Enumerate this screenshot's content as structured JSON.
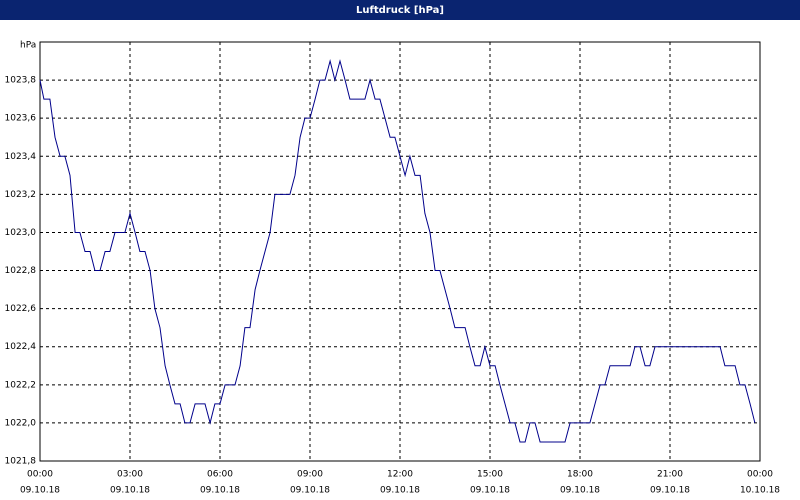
{
  "chart_data": {
    "type": "line",
    "title": "Luftdruck [hPa]",
    "y_unit": "hPa",
    "x": [
      0,
      0.13,
      0.33,
      0.5,
      0.67,
      0.83,
      1,
      1.17,
      1.33,
      1.5,
      1.67,
      1.83,
      2,
      2.17,
      2.33,
      2.5,
      2.83,
      3,
      3.17,
      3.33,
      3.5,
      3.67,
      3.83,
      4,
      4.17,
      4.33,
      4.5,
      4.67,
      4.83,
      5,
      5.17,
      5.5,
      5.67,
      5.83,
      6,
      6.17,
      6.5,
      6.67,
      6.83,
      7,
      7.17,
      7.33,
      7.5,
      7.67,
      7.83,
      8.33,
      8.5,
      8.67,
      8.83,
      9,
      9.17,
      9.33,
      9.5,
      9.67,
      9.83,
      10,
      10.17,
      10.33,
      10.83,
      11,
      11.17,
      11.33,
      11.5,
      11.67,
      11.83,
      12,
      12.17,
      12.33,
      12.5,
      12.67,
      12.83,
      13,
      13.17,
      13.33,
      13.5,
      13.67,
      13.83,
      14.17,
      14.33,
      14.5,
      14.67,
      14.83,
      15,
      15.17,
      15.33,
      15.5,
      15.67,
      15.83,
      16,
      16.17,
      16.33,
      16.5,
      16.67,
      17.5,
      17.67,
      18.33,
      18.5,
      18.67,
      18.83,
      19,
      19.67,
      19.83,
      20,
      20.17,
      20.33,
      20.5,
      22.67,
      22.83,
      23.17,
      23.33,
      23.5,
      23.67,
      23.83
    ],
    "series": [
      {
        "color": "#00008b",
        "values": [
          1023.8,
          1023.7,
          1023.7,
          1023.5,
          1023.4,
          1023.4,
          1023.3,
          1023.0,
          1023.0,
          1022.9,
          1022.9,
          1022.8,
          1022.8,
          1022.9,
          1022.9,
          1023.0,
          1023.0,
          1023.1,
          1023.0,
          1022.9,
          1022.9,
          1022.8,
          1022.6,
          1022.5,
          1022.3,
          1022.2,
          1022.1,
          1022.1,
          1022.0,
          1022.0,
          1022.1,
          1022.1,
          1022.0,
          1022.1,
          1022.1,
          1022.2,
          1022.2,
          1022.3,
          1022.5,
          1022.5,
          1022.7,
          1022.8,
          1022.9,
          1023.0,
          1023.2,
          1023.2,
          1023.3,
          1023.5,
          1023.6,
          1023.6,
          1023.7,
          1023.8,
          1023.8,
          1023.9,
          1023.8,
          1023.9,
          1023.8,
          1023.7,
          1023.7,
          1023.8,
          1023.7,
          1023.7,
          1023.6,
          1023.5,
          1023.5,
          1023.4,
          1023.3,
          1023.4,
          1023.3,
          1023.3,
          1023.1,
          1023.0,
          1022.8,
          1022.8,
          1022.7,
          1022.6,
          1022.5,
          1022.5,
          1022.4,
          1022.3,
          1022.3,
          1022.4,
          1022.3,
          1022.3,
          1022.2,
          1022.1,
          1022.0,
          1022.0,
          1021.9,
          1021.9,
          1022.0,
          1022.0,
          1021.9,
          1021.9,
          1022.0,
          1022.0,
          1022.1,
          1022.2,
          1022.2,
          1022.3,
          1022.3,
          1022.4,
          1022.4,
          1022.3,
          1022.3,
          1022.4,
          1022.4,
          1022.3,
          1022.3,
          1022.2,
          1022.2,
          1022.1,
          1022.0
        ]
      }
    ],
    "xlim": [
      0,
      24
    ],
    "xticks": [
      {
        "value": 0,
        "label": "00:00",
        "date": "09.10.18"
      },
      {
        "value": 3,
        "label": "03:00",
        "date": "09.10.18"
      },
      {
        "value": 6,
        "label": "06:00",
        "date": "09.10.18"
      },
      {
        "value": 9,
        "label": "09:00",
        "date": "09.10.18"
      },
      {
        "value": 12,
        "label": "12:00",
        "date": "09.10.18"
      },
      {
        "value": 15,
        "label": "15:00",
        "date": "09.10.18"
      },
      {
        "value": 18,
        "label": "18:00",
        "date": "09.10.18"
      },
      {
        "value": 21,
        "label": "21:00",
        "date": "09.10.18"
      },
      {
        "value": 24,
        "label": "00:00",
        "date": "10.10.18"
      }
    ],
    "ylim": [
      1021.8,
      1024.0
    ],
    "yticks": [
      {
        "value": 1021.8,
        "label": "1021,8"
      },
      {
        "value": 1022.0,
        "label": "1022,0"
      },
      {
        "value": 1022.2,
        "label": "1022,2"
      },
      {
        "value": 1022.4,
        "label": "1022,4"
      },
      {
        "value": 1022.6,
        "label": "1022,6"
      },
      {
        "value": 1022.8,
        "label": "1022,8"
      },
      {
        "value": 1023.0,
        "label": "1023,0"
      },
      {
        "value": 1023.2,
        "label": "1023,2"
      },
      {
        "value": 1023.4,
        "label": "1023,4"
      },
      {
        "value": 1023.6,
        "label": "1023,6"
      },
      {
        "value": 1023.8,
        "label": "1023,8"
      }
    ],
    "grid": true
  }
}
